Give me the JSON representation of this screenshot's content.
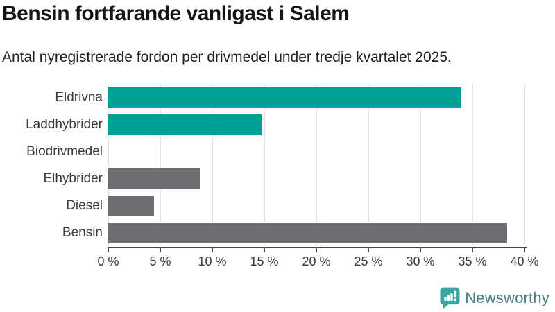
{
  "header": {
    "title": "Bensin fortfarande vanligast i Salem",
    "subtitle": "Antal nyregistrerade fordon per drivmedel under tredje kvartalet 2025."
  },
  "chart_data": {
    "type": "bar",
    "orientation": "horizontal",
    "title": "Bensin fortfarande vanligast i Salem",
    "subtitle": "Antal nyregistrerade fordon per drivmedel under tredje kvartalet 2025.",
    "categories": [
      "Eldrivna",
      "Laddhybrider",
      "Biodrivmedel",
      "Elhybrider",
      "Diesel",
      "Bensin"
    ],
    "values": [
      33.9,
      14.7,
      0,
      8.8,
      4.4,
      38.3
    ],
    "unit": "%",
    "bar_colors": [
      "#00a09a",
      "#00a09a",
      "#00a09a",
      "#6e6e72",
      "#6e6e72",
      "#6e6e72"
    ],
    "xlim": [
      0,
      40
    ],
    "x_ticks": [
      0,
      5,
      10,
      15,
      20,
      25,
      30,
      35,
      40
    ],
    "x_tick_labels": [
      "0 %",
      "5 %",
      "10 %",
      "15 %",
      "20 %",
      "25 %",
      "30 %",
      "35 %",
      "40 %"
    ],
    "grid": "vertical",
    "legend": "none"
  },
  "colors": {
    "accent_teal": "#00a09a",
    "neutral_gray": "#6e6e72",
    "gridline": "#e4e4e4",
    "axis": "#4a4a4a",
    "logo_teal": "#3fa5a0",
    "logo_text": "#4b7d84"
  },
  "branding": {
    "logo_label": "Newsworthy",
    "logo_icon": "newsworthy-chart-bubble-icon"
  }
}
